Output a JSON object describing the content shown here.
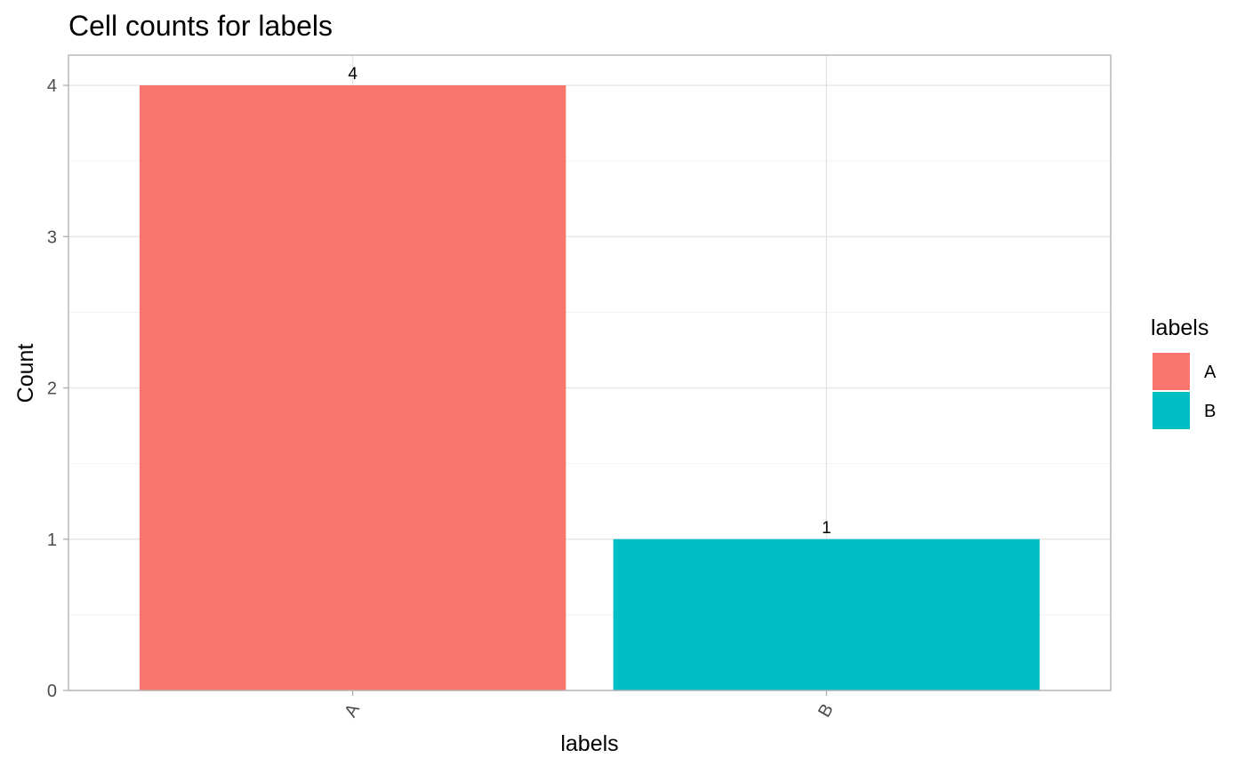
{
  "chart_data": {
    "type": "bar",
    "title": "Cell counts for labels",
    "xlabel": "labels",
    "ylabel": "Count",
    "categories": [
      "A",
      "B"
    ],
    "values": [
      4,
      1
    ],
    "data_labels": [
      "4",
      "1"
    ],
    "colors": [
      "#F8766D",
      "#00BFC4"
    ],
    "ylim": [
      0,
      4.2
    ],
    "yticks": [
      0,
      1,
      2,
      3,
      4
    ],
    "ytick_labels": [
      "0",
      "1",
      "2",
      "3",
      "4"
    ],
    "xtick_rotation": "rotated 60 degrees",
    "grid": true,
    "legend": {
      "title": "labels",
      "placement": "right",
      "items": [
        {
          "label": "A",
          "color": "#F8766D"
        },
        {
          "label": "B",
          "color": "#00BFC4"
        }
      ]
    }
  }
}
